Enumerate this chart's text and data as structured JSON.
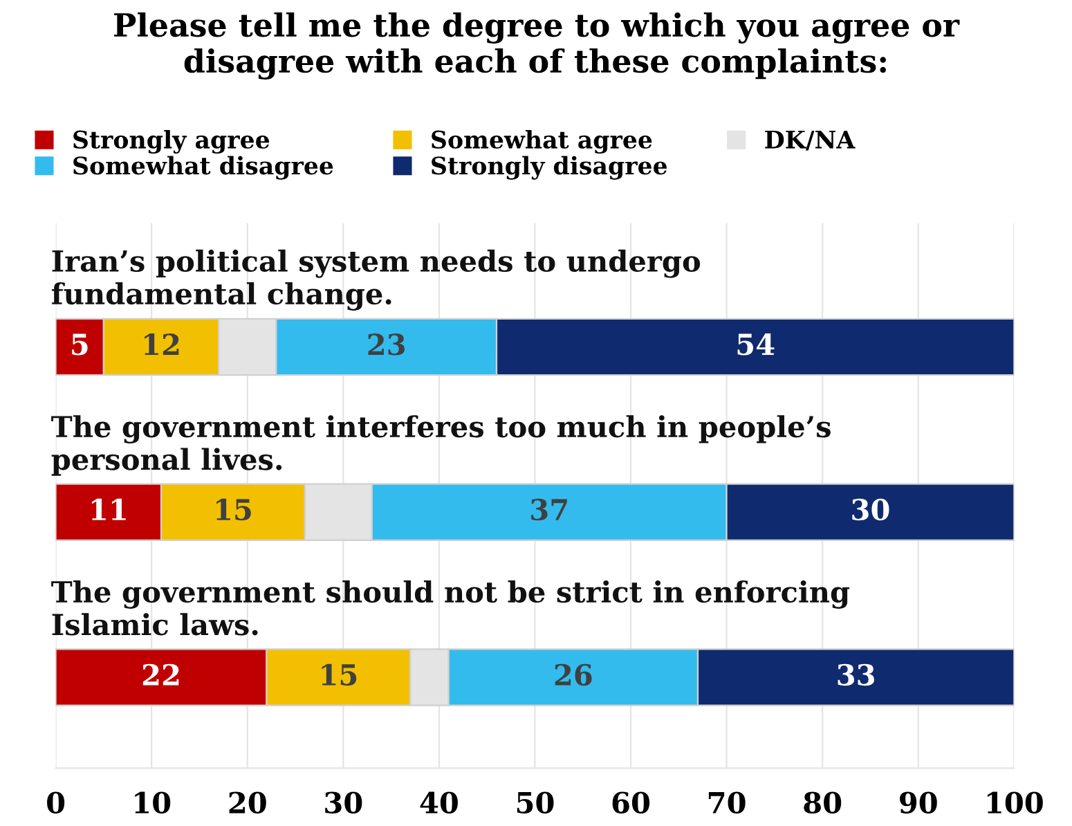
{
  "chart_data": {
    "type": "bar",
    "orientation": "horizontal",
    "stacked": true,
    "title": "Please tell me the degree to which you agree or\ndisagree with each of these complaints:",
    "categories": [
      "Iran’s political system needs to undergo\nfundamental change.",
      "The government interferes too much in people’s\npersonal lives.",
      "The government should not be strict in enforcing\nIslamic laws."
    ],
    "series": [
      {
        "name": "Strongly agree",
        "color": "#c00000",
        "values": [
          5,
          11,
          22
        ],
        "value_labels": [
          "5",
          "11",
          "22"
        ]
      },
      {
        "name": "Somewhat agree",
        "color": "#f2c000",
        "values": [
          12,
          15,
          15
        ],
        "value_labels": [
          "12",
          "15",
          "15"
        ]
      },
      {
        "name": "DK/NA",
        "color": "#e4e4e4",
        "values": [
          6,
          7,
          4
        ],
        "value_labels": [
          null,
          null,
          null
        ]
      },
      {
        "name": "Somewhat disagree",
        "color": "#33bbee",
        "values": [
          23,
          37,
          26
        ],
        "value_labels": [
          "23",
          "37",
          "26"
        ]
      },
      {
        "name": "Strongly disagree",
        "color": "#0f2a6e",
        "values": [
          54,
          30,
          33
        ],
        "value_labels": [
          "54",
          "30",
          "33"
        ]
      }
    ],
    "xlim": [
      0,
      100
    ],
    "xticks": [
      0,
      10,
      20,
      30,
      40,
      50,
      60,
      70,
      80,
      90,
      100
    ],
    "grid": "x",
    "legend": "top"
  }
}
